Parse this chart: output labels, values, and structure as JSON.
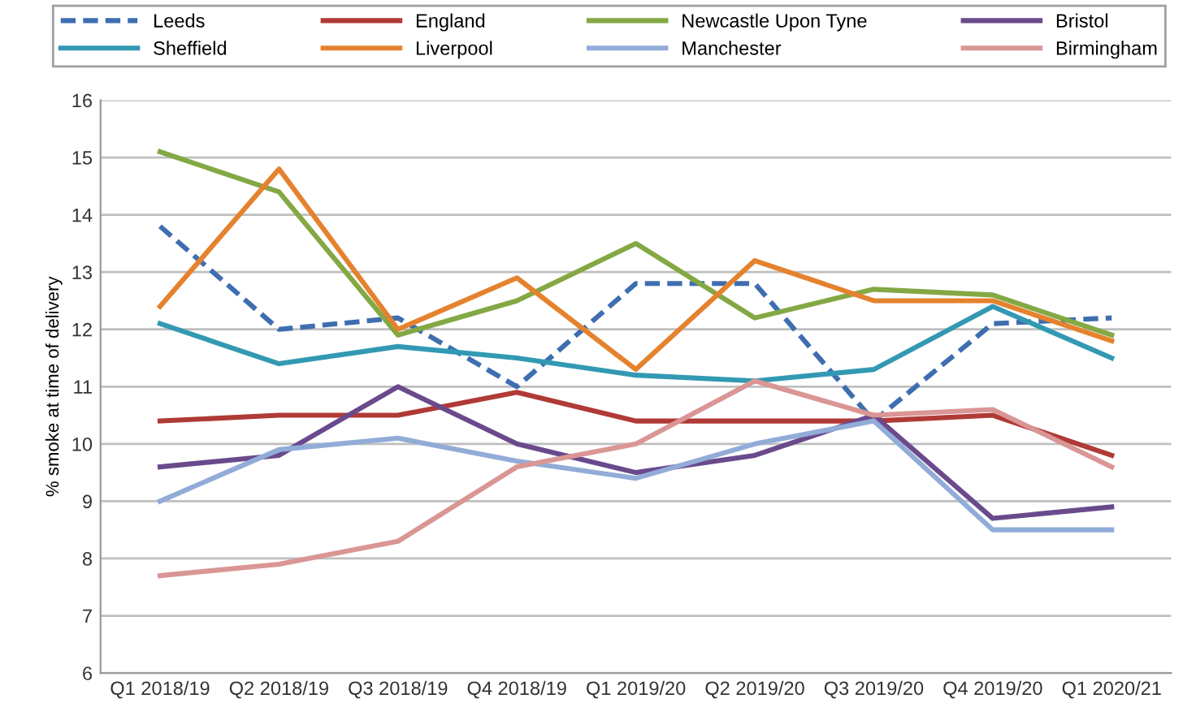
{
  "chart_data": {
    "type": "line",
    "ylabel": "% smoke at time of delivery",
    "categories": [
      "Q1 2018/19",
      "Q2 2018/19",
      "Q3 2018/19",
      "Q4 2018/19",
      "Q1 2019/20",
      "Q2 2019/20",
      "Q3 2019/20",
      "Q4 2019/20",
      "Q1 2020/21"
    ],
    "ylim": [
      6,
      16
    ],
    "yticks": [
      6,
      7,
      8,
      9,
      10,
      11,
      12,
      13,
      14,
      15,
      16
    ],
    "grid": "y",
    "legend": "top",
    "marker": "none",
    "series": [
      {
        "name": "Leeds",
        "color": "#3e6eb0",
        "line_style": "dashed",
        "values": [
          13.8,
          12.0,
          12.2,
          11.0,
          12.8,
          12.8,
          10.4,
          12.1,
          12.2
        ]
      },
      {
        "name": "England",
        "color": "#b03a36",
        "values": [
          10.4,
          10.5,
          10.5,
          10.9,
          10.4,
          10.4,
          10.4,
          10.5,
          9.8
        ]
      },
      {
        "name": "Newcastle Upon Tyne",
        "color": "#83a844",
        "values": [
          15.1,
          14.4,
          11.9,
          12.5,
          13.5,
          12.2,
          12.7,
          12.6,
          11.9
        ]
      },
      {
        "name": "Bristol",
        "color": "#6a4a8c",
        "values": [
          9.6,
          9.8,
          11.0,
          10.0,
          9.5,
          9.8,
          10.5,
          8.7,
          8.9
        ]
      },
      {
        "name": "Sheffield",
        "color": "#3399b3",
        "values": [
          12.1,
          11.4,
          11.7,
          11.5,
          11.2,
          11.1,
          11.3,
          12.4,
          11.5
        ]
      },
      {
        "name": "Liverpool",
        "color": "#e5822e",
        "values": [
          12.4,
          14.8,
          12.0,
          12.9,
          11.3,
          13.2,
          12.5,
          12.5,
          11.8
        ]
      },
      {
        "name": "Manchester",
        "color": "#92acd8",
        "values": [
          9.0,
          9.9,
          10.1,
          9.7,
          9.4,
          10.0,
          10.4,
          8.5,
          8.5
        ]
      },
      {
        "name": "Birmingham",
        "color": "#d99694",
        "values": [
          7.7,
          7.9,
          8.3,
          9.6,
          10.0,
          11.1,
          10.5,
          10.6,
          9.6
        ]
      }
    ]
  }
}
